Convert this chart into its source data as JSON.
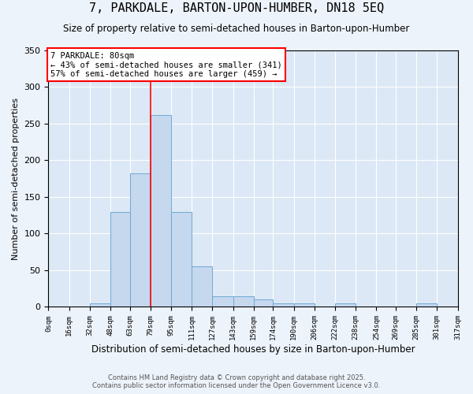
{
  "title": "7, PARKDALE, BARTON-UPON-HUMBER, DN18 5EQ",
  "subtitle": "Size of property relative to semi-detached houses in Barton-upon-Humber",
  "xlabel": "Distribution of semi-detached houses by size in Barton-upon-Humber",
  "ylabel": "Number of semi-detached properties",
  "bin_edges": [
    0,
    16,
    32,
    48,
    63,
    79,
    95,
    111,
    127,
    143,
    159,
    174,
    190,
    206,
    222,
    238,
    254,
    269,
    285,
    301,
    317
  ],
  "bar_heights": [
    0,
    0,
    5,
    130,
    182,
    262,
    130,
    55,
    15,
    15,
    10,
    5,
    5,
    0,
    5,
    0,
    0,
    0,
    5,
    0
  ],
  "bar_color": "#c5d8ee",
  "bar_edge_color": "#6fa8d4",
  "bg_color": "#dce8f5",
  "grid_color": "#ffffff",
  "fig_bg_color": "#edf3fb",
  "property_line_x": 79,
  "annotation_text_line1": "7 PARKDALE: 80sqm",
  "annotation_text_line2": "← 43% of semi-detached houses are smaller (341)",
  "annotation_text_line3": "57% of semi-detached houses are larger (459) →",
  "ylim": [
    0,
    350
  ],
  "yticks": [
    0,
    50,
    100,
    150,
    200,
    250,
    300,
    350
  ],
  "footnote1": "Contains HM Land Registry data © Crown copyright and database right 2025.",
  "footnote2": "Contains public sector information licensed under the Open Government Licence v3.0."
}
